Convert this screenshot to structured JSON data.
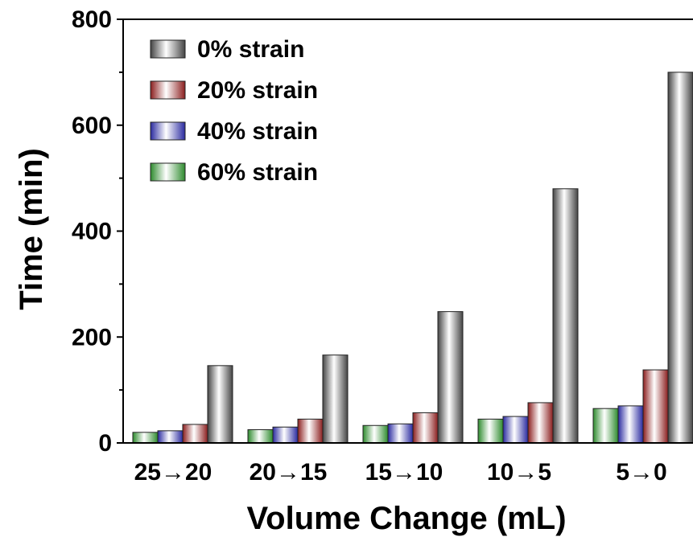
{
  "chart_data": {
    "type": "bar",
    "title": "",
    "xlabel": "Volume Change (mL)",
    "ylabel": "Time (min)",
    "ylim": [
      0,
      800
    ],
    "yticks": [
      "0",
      "200",
      "400",
      "600",
      "800"
    ],
    "categories": [
      "25→20",
      "20→15",
      "15→10",
      "10→5",
      "5→0"
    ],
    "series": [
      {
        "name": "60% strain",
        "color": "#2e8b2e",
        "values": [
          20,
          25,
          33,
          45,
          65
        ]
      },
      {
        "name": "40% strain",
        "color": "#2a2aa0",
        "values": [
          23,
          30,
          36,
          50,
          70
        ]
      },
      {
        "name": "20% strain",
        "color": "#8b1e1e",
        "values": [
          35,
          45,
          57,
          76,
          138
        ]
      },
      {
        "name": "0% strain",
        "color": "#444444",
        "values": [
          146,
          166,
          248,
          480,
          700
        ]
      }
    ],
    "legend": {
      "position": "top-left",
      "entries": [
        "0% strain",
        "20% strain",
        "40% strain",
        "60% strain"
      ]
    },
    "grid": false
  }
}
